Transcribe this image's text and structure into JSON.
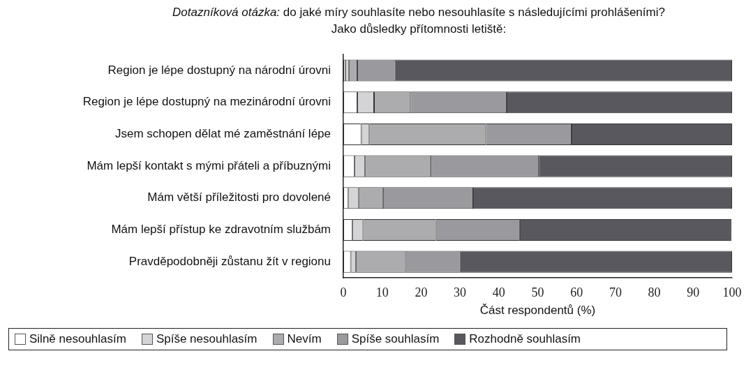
{
  "chart_data": {
    "type": "bar",
    "orientation": "horizontal",
    "stacked": true,
    "title": "Dotazníková otázka: do jaké míry souhlasíte nebo nesouhlasíte s následujícími prohlášeními?",
    "subtitle": "Jako důsledky přítomnosti letiště:",
    "xlabel": "Část respondentů (%)",
    "categories": [
      "Region je lépe dostupný na národní úrovni",
      "Region je lépe dostupný na mezinárodní úrovni",
      "Jsem schopen dělat mé zaměstnání lépe",
      "Mám lepší kontakt s mými přáteli a příbuznými",
      "Mám větší příležitosti pro dovolené",
      "Mám lepší přístup ke zdravotním službám",
      "Pravděpodobněji zůstanu žít v regionu"
    ],
    "series": [
      {
        "name": "Silně nesouhlasím",
        "color": "#ffffff",
        "values": [
          0.5,
          3.6,
          4.6,
          2.9,
          1.2,
          2.3,
          1.9
        ]
      },
      {
        "name": "Spíše nesouhlasím",
        "color": "#d4d4d6",
        "values": [
          0.9,
          4.3,
          2.1,
          2.7,
          2.7,
          2.8,
          1.3
        ]
      },
      {
        "name": "Nevím",
        "color": "#acacae",
        "values": [
          2.2,
          9.4,
          30.0,
          16.8,
          6.3,
          18.7,
          12.7
        ]
      },
      {
        "name": "Spíše souhlasím",
        "color": "#9a9a9e",
        "values": [
          9.6,
          24.7,
          22.0,
          27.9,
          23.2,
          21.6,
          14.0
        ]
      },
      {
        "name": "Rozhodně souhlasím",
        "color": "#58585e",
        "values": [
          86.8,
          58.0,
          41.3,
          49.7,
          66.6,
          54.4,
          70.1
        ]
      }
    ],
    "xlim": [
      0,
      100
    ],
    "xticks": [
      0,
      10,
      20,
      30,
      40,
      50,
      60,
      70,
      80,
      90,
      100
    ],
    "grid": false,
    "legend": "bottom"
  }
}
